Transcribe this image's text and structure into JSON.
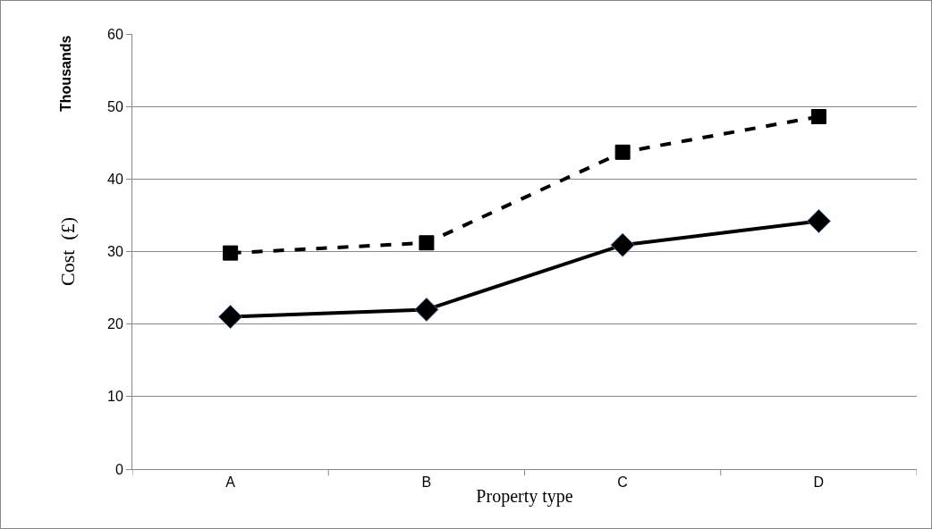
{
  "chart_data": {
    "type": "line",
    "xlabel": "Property type",
    "ylabel": "Cost  (£)",
    "annotations": [
      "Thousands"
    ],
    "categories": [
      "A",
      "B",
      "C",
      "D"
    ],
    "series": [
      {
        "color": "#000000",
        "values": [
          29.8,
          31.2,
          43.7,
          48.6
        ],
        "marker": "square",
        "line_style": "dashed"
      },
      {
        "color": "#000000",
        "values": [
          21.0,
          22.0,
          30.9,
          34.2
        ],
        "marker": "diamond",
        "line_style": "solid"
      }
    ],
    "ylim": [
      0,
      60
    ],
    "yticks": [
      0,
      10,
      20,
      30,
      40,
      50,
      60
    ],
    "grid": "y"
  }
}
